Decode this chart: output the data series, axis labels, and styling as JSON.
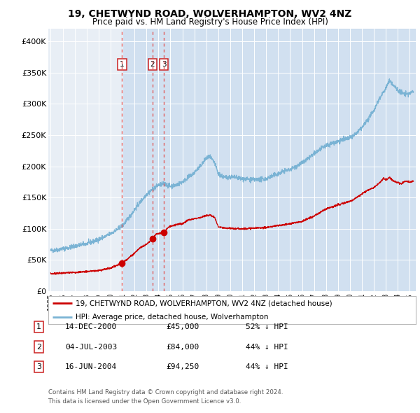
{
  "title1": "19, CHETWYND ROAD, WOLVERHAMPTON, WV2 4NZ",
  "title2": "Price paid vs. HM Land Registry's House Price Index (HPI)",
  "background_color": "#e8eef5",
  "hpi_color": "#7ab3d4",
  "price_color": "#cc0000",
  "purchases": [
    {
      "num": 1,
      "date_x": 2000.956,
      "price": 45000
    },
    {
      "num": 2,
      "date_x": 2003.504,
      "price": 84000
    },
    {
      "num": 3,
      "date_x": 2004.457,
      "price": 94250
    }
  ],
  "shaded_start": 2000.956,
  "legend_label_red": "19, CHETWYND ROAD, WOLVERHAMPTON, WV2 4NZ (detached house)",
  "legend_label_blue": "HPI: Average price, detached house, Wolverhampton",
  "footer1": "Contains HM Land Registry data © Crown copyright and database right 2024.",
  "footer2": "This data is licensed under the Open Government Licence v3.0.",
  "table_rows": [
    {
      "num": 1,
      "date": "14-DEC-2000",
      "price": "£45,000",
      "pct": "52% ↓ HPI"
    },
    {
      "num": 2,
      "date": "04-JUL-2003",
      "price": "£84,000",
      "pct": "44% ↓ HPI"
    },
    {
      "num": 3,
      "date": "16-JUN-2004",
      "price": "£94,250",
      "pct": "44% ↓ HPI"
    }
  ],
  "ylim": [
    0,
    420000
  ],
  "xlim_left": 1994.8,
  "xlim_right": 2025.5,
  "yticks": [
    0,
    50000,
    100000,
    150000,
    200000,
    250000,
    300000,
    350000,
    400000
  ],
  "ylabels": [
    "£0",
    "£50K",
    "£100K",
    "£150K",
    "£200K",
    "£250K",
    "£300K",
    "£350K",
    "£400K"
  ]
}
